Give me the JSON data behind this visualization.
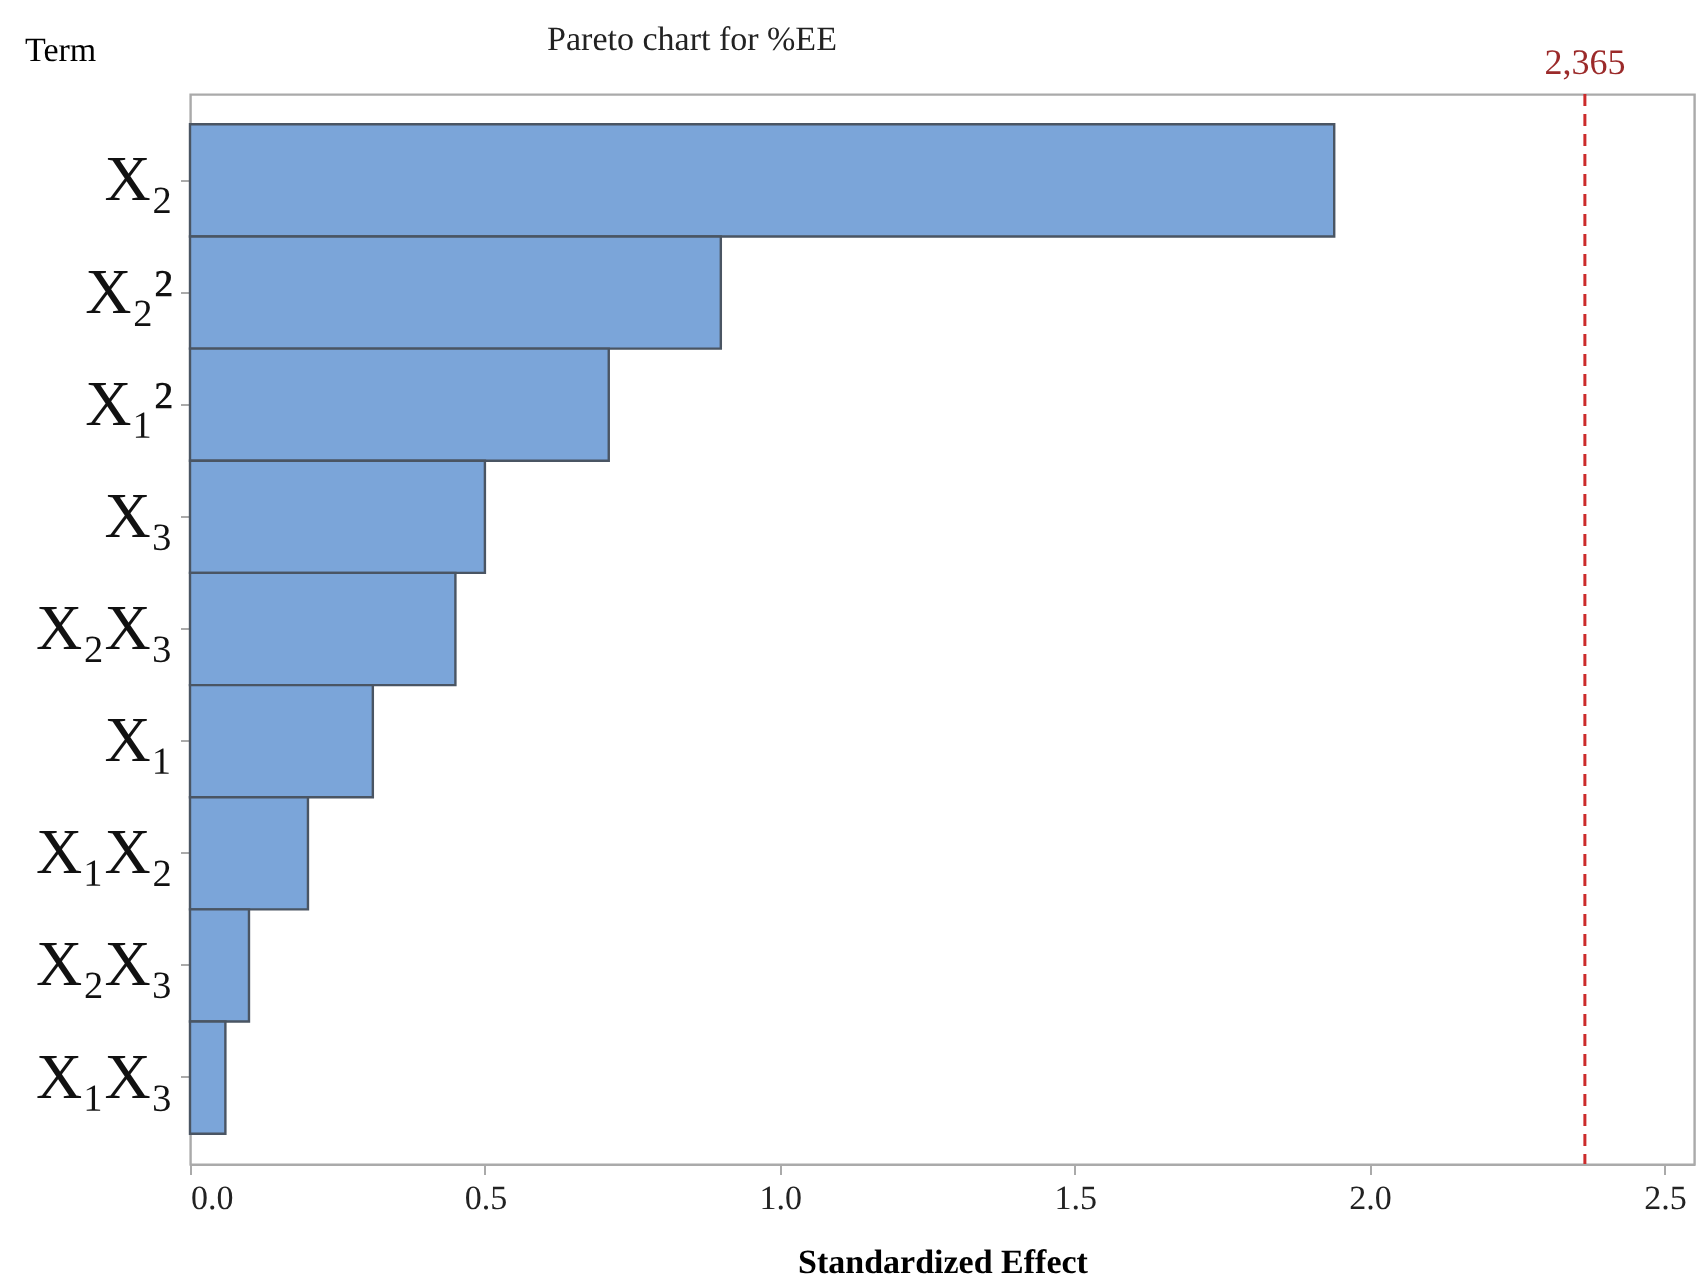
{
  "chart_data": {
    "type": "bar",
    "orientation": "horizontal",
    "title": "Pareto chart for  %EE",
    "xlabel": "Standardized Effect",
    "ylabel": "Term",
    "categories": [
      "X₂",
      "X₂²",
      "X₁²",
      "X₃",
      "X₂X₃",
      "X₁",
      "X₁X₂",
      "X₂X₃",
      "X₁X₃"
    ],
    "values": [
      1.94,
      0.9,
      0.71,
      0.5,
      0.45,
      0.31,
      0.2,
      0.1,
      0.06
    ],
    "color": "#7ba5d9",
    "xlim": [
      0,
      2.55
    ],
    "xticks": [
      {
        "value": 0,
        "label": "0.0"
      },
      0.5,
      {
        "value": 1,
        "label": "1.0"
      },
      1.5,
      {
        "value": 2,
        "label": "2.0"
      },
      2.5
    ],
    "ref_lines": [
      {
        "axis": "x",
        "value": 2.365,
        "label": "2,365",
        "color": "#cc2b2b",
        "line_style": "dashed"
      }
    ],
    "grid": false
  }
}
